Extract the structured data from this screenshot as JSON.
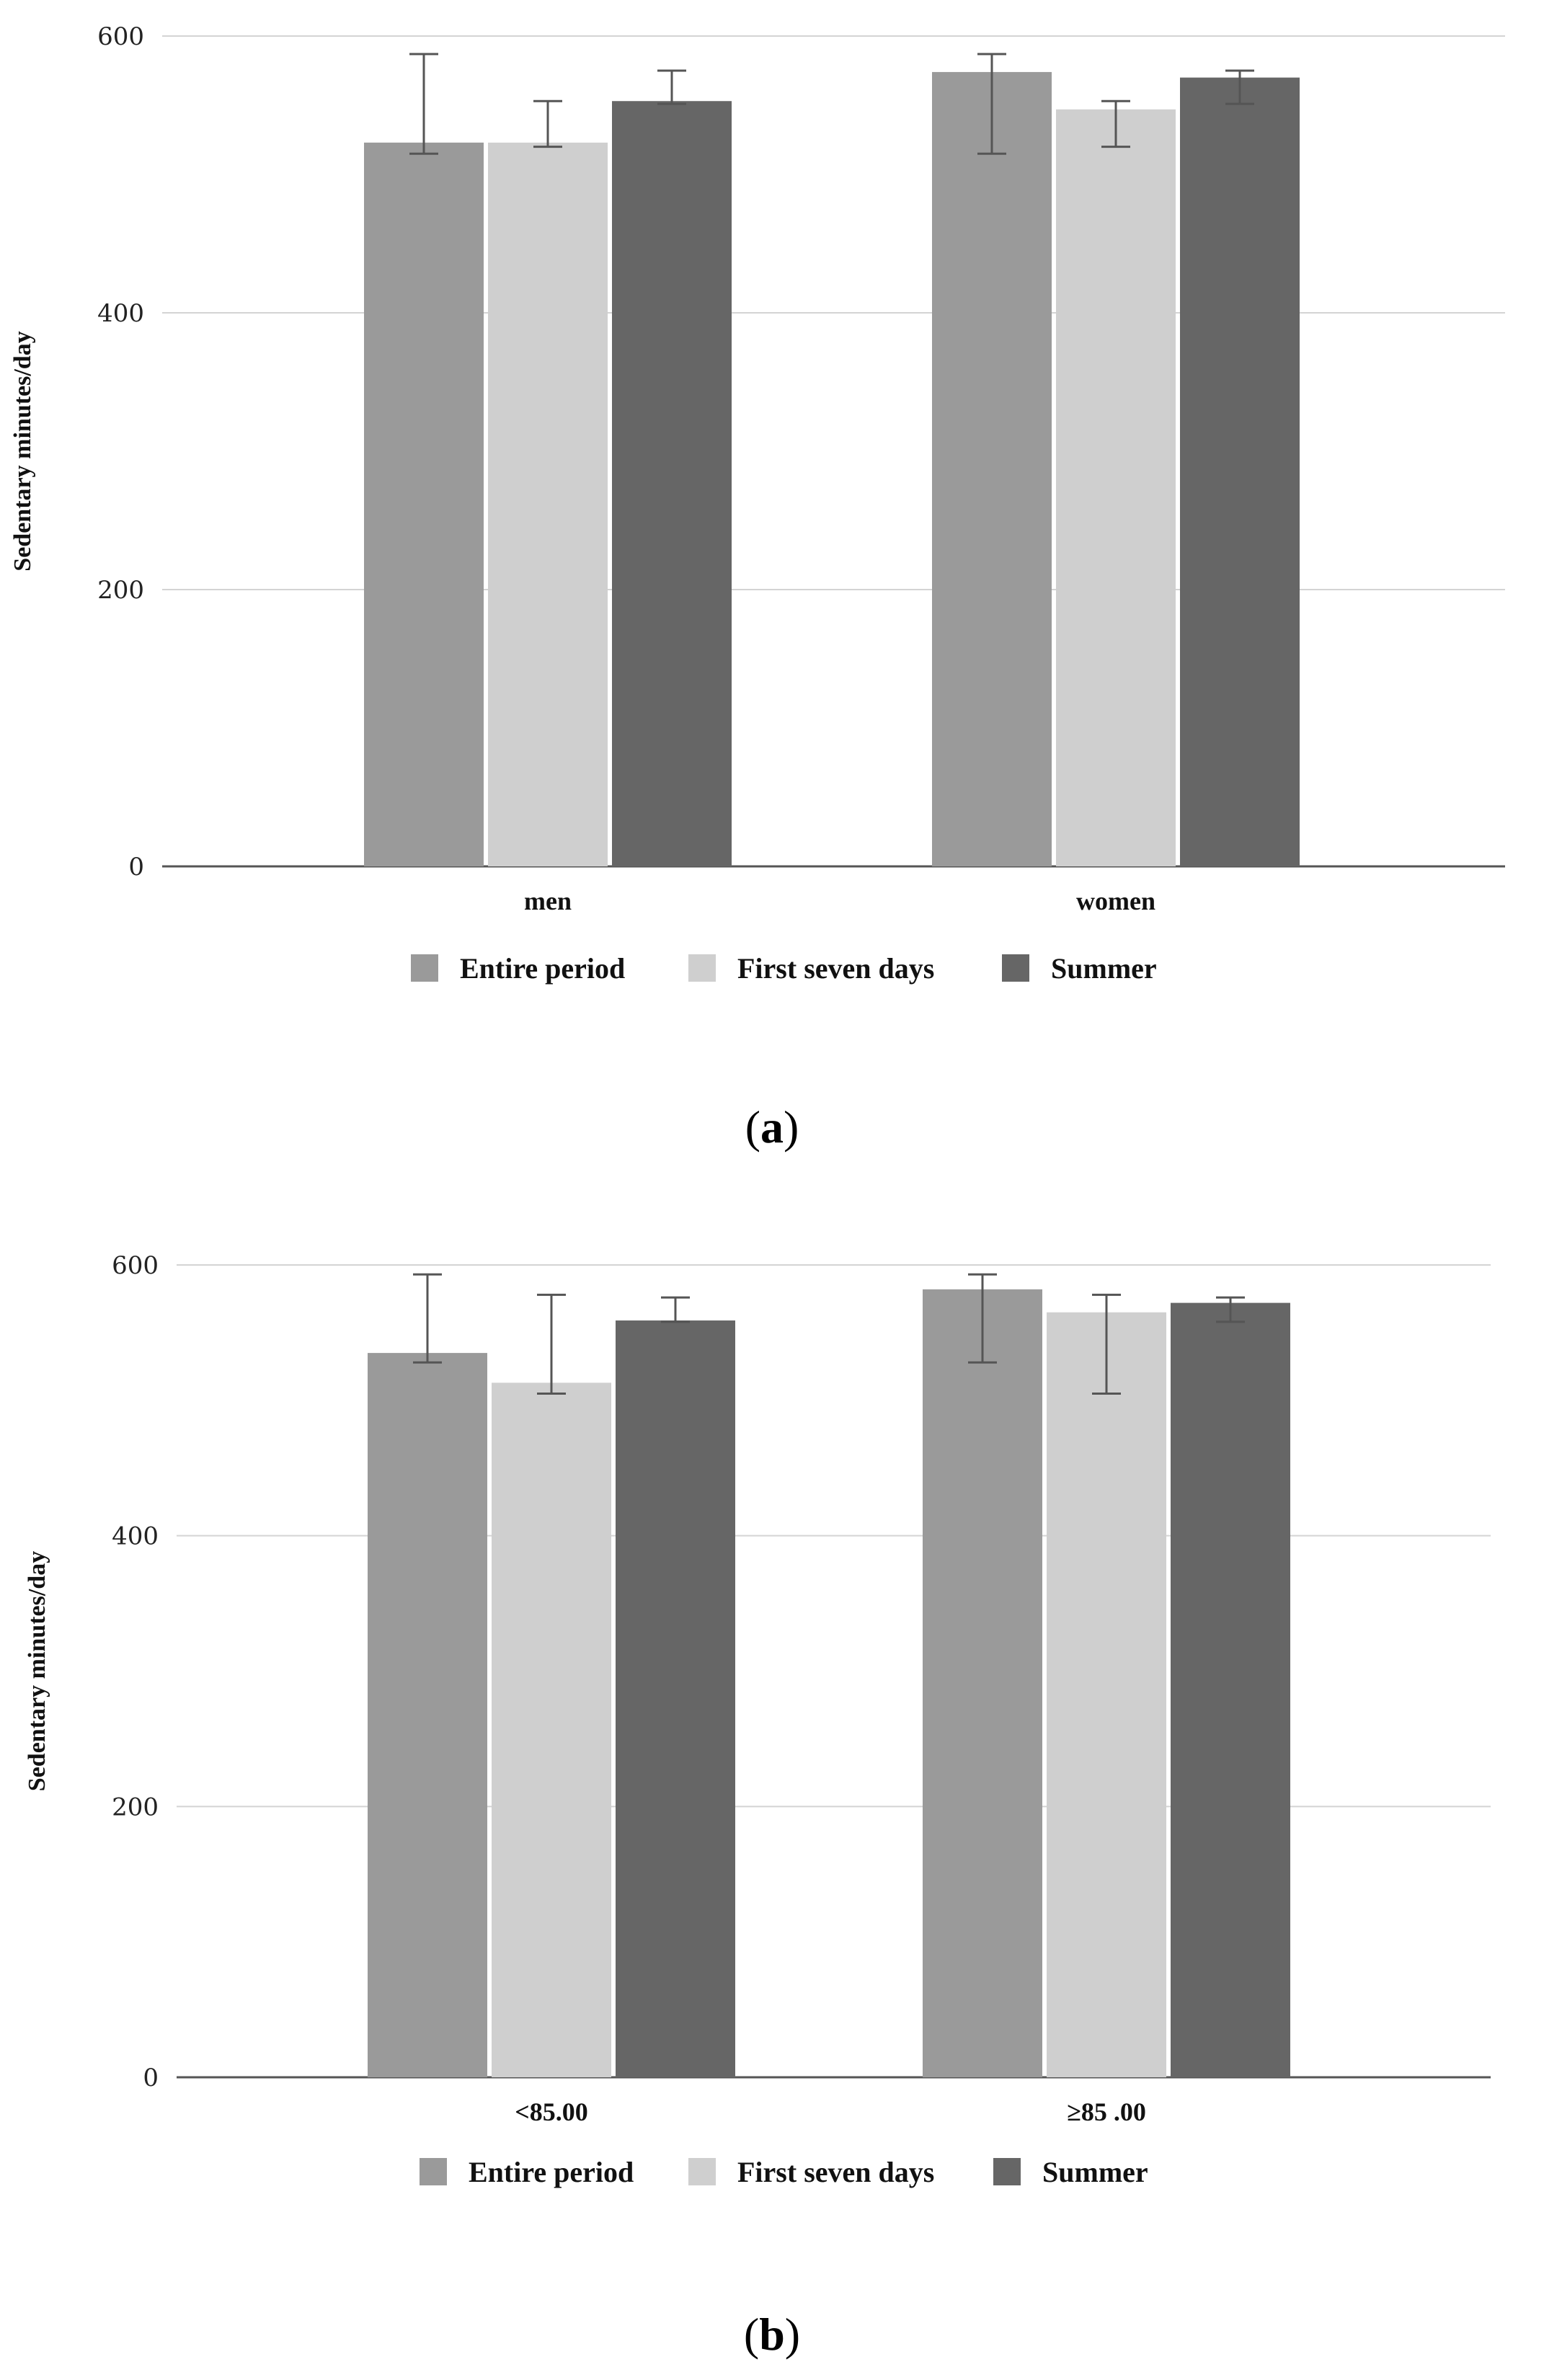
{
  "colors": {
    "entire_period": "#9a9a9a",
    "first_seven_days": "#cfcfcf",
    "summer": "#666666",
    "grid": "#d4d4d4",
    "axis": "#555555",
    "errorbar": "#555555"
  },
  "chart_data": [
    {
      "panel": "a",
      "type": "bar",
      "ylabel": "Sedentary minutes/day",
      "xlabel": "",
      "ylim": [
        0,
        600
      ],
      "yticks": [
        0,
        200,
        400,
        600
      ],
      "categories": [
        "men",
        "women"
      ],
      "legend_position": "bottom",
      "series": [
        {
          "name": "Entire period",
          "values": [
            523,
            574
          ],
          "error_low": [
            515,
            515
          ],
          "error_high": [
            587,
            587
          ]
        },
        {
          "name": "First seven days",
          "values": [
            523,
            547
          ],
          "error_low": [
            520,
            520
          ],
          "error_high": [
            553,
            553
          ]
        },
        {
          "name": "Summer",
          "values": [
            553,
            570
          ],
          "error_low": [
            551,
            551
          ],
          "error_high": [
            575,
            575
          ]
        }
      ]
    },
    {
      "panel": "b",
      "type": "bar",
      "ylabel": "Sedentary minutes/day",
      "xlabel": "",
      "ylim": [
        0,
        600
      ],
      "yticks": [
        0,
        200,
        400,
        600
      ],
      "categories": [
        "<85.00",
        "≥85 .00"
      ],
      "legend_position": "bottom",
      "series": [
        {
          "name": "Entire period",
          "values": [
            535,
            582
          ],
          "error_low": [
            528,
            528
          ],
          "error_high": [
            593,
            593
          ]
        },
        {
          "name": "First seven days",
          "values": [
            513,
            565
          ],
          "error_low": [
            505,
            505
          ],
          "error_high": [
            578,
            578
          ]
        },
        {
          "name": "Summer",
          "values": [
            559,
            572
          ],
          "error_low": [
            558,
            558
          ],
          "error_high": [
            576,
            576
          ]
        }
      ]
    }
  ],
  "panel_labels": [
    "a",
    "b"
  ]
}
